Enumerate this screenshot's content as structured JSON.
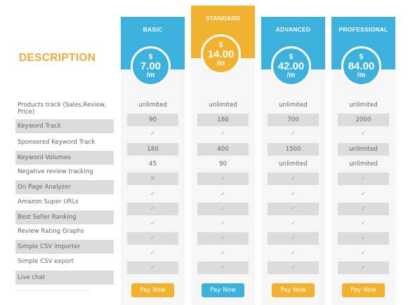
{
  "description_title": "DESCRIPTION",
  "features": [
    "Products track (Sales,Review, Price)",
    "Keyword Track",
    "Sponsored Keyword Track",
    "Keyword Volumes",
    "Negative review tracking",
    "On Page Analyzer",
    "Amazon Super URLs",
    "Best Seller Ranking",
    "Review Rating Graphs",
    "Simple CSV importer",
    "Simple CSV export",
    "Live chat"
  ],
  "colors": {
    "blue": "#3cb1dd",
    "orange": "#f2b12e",
    "check": "#7dc97d",
    "cross": "#e67b7b",
    "row_shade": "#dcdcdc"
  },
  "plans": [
    {
      "name": "BASIC",
      "currency": "$",
      "price": "7.00",
      "period": "/m",
      "color": "blue",
      "button_color": "orange",
      "button_label": "Pay Now",
      "values": [
        "unlimited",
        "90",
        "check",
        "180",
        "45",
        "cross",
        "check",
        "check",
        "check",
        "check",
        "check",
        "check"
      ]
    },
    {
      "name": "STANDARD",
      "currency": "$",
      "price": "14.00",
      "period": "/m",
      "color": "orange",
      "button_color": "blue",
      "button_label": "Pay Now",
      "values": [
        "unlimited",
        "180",
        "check",
        "400",
        "90",
        "check",
        "check",
        "check",
        "check",
        "check",
        "check",
        "check"
      ]
    },
    {
      "name": "ADVANCED",
      "currency": "$",
      "price": "42.00",
      "period": "/m",
      "color": "blue",
      "button_color": "orange",
      "button_label": "Pay Now",
      "values": [
        "unlimited",
        "700",
        "check",
        "1500",
        "unlimited",
        "check",
        "check",
        "check",
        "check",
        "check",
        "check",
        "check"
      ]
    },
    {
      "name": "PROFESSIONAL",
      "currency": "$",
      "price": "84.00",
      "period": "/m",
      "color": "blue",
      "button_color": "orange",
      "button_label": "Pay Now",
      "values": [
        "unlimited",
        "2000",
        "check",
        "unlimited",
        "unlimited",
        "check",
        "check",
        "check",
        "check",
        "check",
        "check",
        "check"
      ]
    }
  ]
}
